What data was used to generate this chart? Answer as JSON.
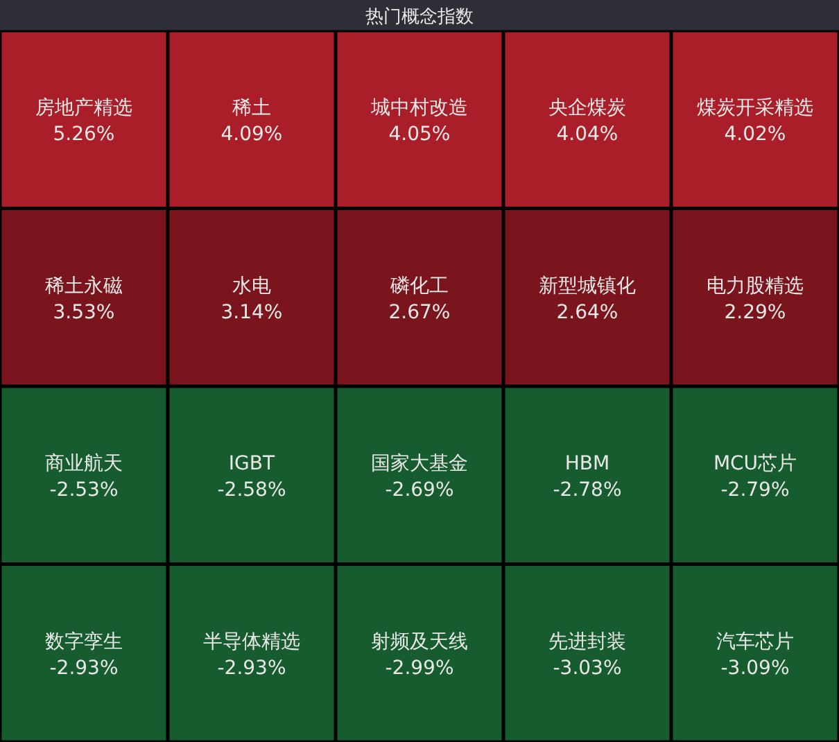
{
  "chart_data": {
    "type": "other",
    "title": "热门概念指数",
    "categories": [
      "房地产精选",
      "稀土",
      "城中村改造",
      "央企煤炭",
      "煤炭开采精选",
      "稀土永磁",
      "水电",
      "磷化工",
      "新型城镇化",
      "电力股精选",
      "商业航天",
      "IGBT",
      "国家大基金",
      "HBM",
      "MCU芯片",
      "数字孪生",
      "半导体精选",
      "射频及天线",
      "先进封装",
      "汽车芯片"
    ],
    "values": [
      5.26,
      4.09,
      4.05,
      4.04,
      4.02,
      3.53,
      3.14,
      2.67,
      2.64,
      2.29,
      -2.53,
      -2.58,
      -2.69,
      -2.78,
      -2.79,
      -2.93,
      -2.93,
      -2.99,
      -3.03,
      -3.09
    ],
    "value_labels": [
      "5.26%",
      "4.09%",
      "4.05%",
      "4.04%",
      "4.02%",
      "3.53%",
      "3.14%",
      "2.67%",
      "2.64%",
      "2.29%",
      "-2.53%",
      "-2.58%",
      "-2.69%",
      "-2.78%",
      "-2.79%",
      "-2.93%",
      "-2.93%",
      "-2.99%",
      "-3.03%",
      "-3.09%"
    ],
    "colors": [
      "#a91e28",
      "#a91e28",
      "#a91e28",
      "#a91e28",
      "#a91e28",
      "#7b151d",
      "#7b151d",
      "#7b151d",
      "#7b151d",
      "#7b151d",
      "#175c2f",
      "#175c2f",
      "#175c2f",
      "#175c2f",
      "#175c2f",
      "#175c2f",
      "#175c2f",
      "#175c2f",
      "#175c2f",
      "#175c2f"
    ]
  }
}
